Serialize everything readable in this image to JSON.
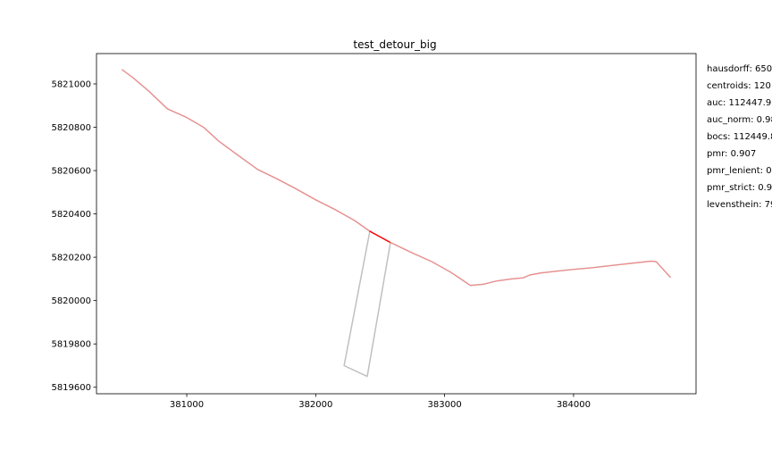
{
  "chart_data": {
    "type": "line",
    "title": "test_detour_big",
    "xlabel": "",
    "ylabel": "",
    "xlim": [
      380300,
      384950
    ],
    "ylim": [
      5819570,
      5821140
    ],
    "xticks": [
      381000,
      382000,
      383000,
      384000
    ],
    "yticks": [
      5819600,
      5819800,
      5820000,
      5820200,
      5820400,
      5820600,
      5820800,
      5821000
    ],
    "grid": false,
    "colors": {
      "path": "#c0c0c0",
      "matched": "#f28a8a",
      "detour_segment": "#ff0000"
    },
    "series": [
      {
        "x": [
          380500,
          380580,
          380700,
          380850,
          381000,
          381130,
          381250,
          381400,
          381550,
          381700,
          381850,
          382000,
          382150,
          382300,
          382420,
          382580,
          382750,
          382900,
          383050,
          383200,
          383300,
          383400,
          383520,
          383610,
          383660,
          383750,
          383900,
          384000,
          384150,
          384300,
          384450,
          384600,
          384640,
          384750
        ],
        "y": [
          5821065,
          5821030,
          5820970,
          5820885,
          5820845,
          5820800,
          5820735,
          5820670,
          5820605,
          5820562,
          5820515,
          5820465,
          5820420,
          5820370,
          5820320,
          5820268,
          5820220,
          5820180,
          5820130,
          5820070,
          5820075,
          5820090,
          5820100,
          5820105,
          5820118,
          5820128,
          5820138,
          5820144,
          5820152,
          5820162,
          5820172,
          5820182,
          5820180,
          5820108
        ]
      },
      {
        "x": [
          382420,
          382220,
          382400,
          382580
        ],
        "y": [
          5820320,
          5819700,
          5819650,
          5820268
        ]
      },
      {
        "x": [
          380500,
          380580,
          380700,
          380850,
          381000,
          381130,
          381250,
          381400,
          381550,
          381700,
          381850,
          382000,
          382150,
          382300,
          382420
        ],
        "y": [
          5821065,
          5821030,
          5820970,
          5820885,
          5820845,
          5820800,
          5820735,
          5820670,
          5820605,
          5820562,
          5820515,
          5820465,
          5820420,
          5820370,
          5820320
        ]
      },
      {
        "x": [
          382420,
          382580
        ],
        "y": [
          5820320,
          5820268
        ]
      },
      {
        "x": [
          382580,
          382750,
          382900,
          383050,
          383200,
          383300,
          383400,
          383520,
          383610,
          383660,
          383750,
          383900,
          384000,
          384150,
          384300,
          384450,
          384600,
          384640,
          384750
        ],
        "y": [
          5820268,
          5820220,
          5820180,
          5820130,
          5820070,
          5820075,
          5820090,
          5820100,
          5820105,
          5820118,
          5820128,
          5820138,
          5820144,
          5820152,
          5820162,
          5820172,
          5820182,
          5820180,
          5820108
        ]
      }
    ]
  },
  "metrics": [
    "hausdorff: 650",
    "centroids: 120",
    "auc: 112447.9",
    "auc_norm: 0.98",
    "bocs: 112449.8",
    "pmr: 0.907",
    "pmr_lenient: 0",
    "pmr_strict: 0.9",
    "levensthein: 79"
  ]
}
